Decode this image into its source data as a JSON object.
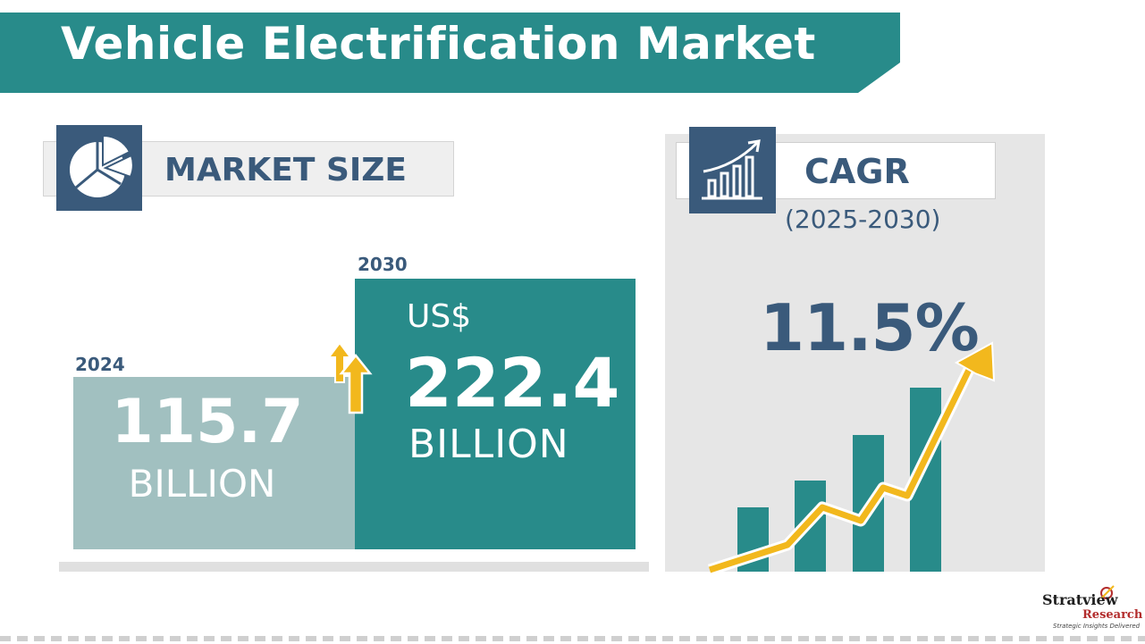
{
  "title": "Vehicle Electrification Market",
  "market_size": {
    "label": "MARKET SIZE",
    "icon": "pie-chart-icon",
    "y2024": {
      "year": "2024",
      "value": "115.7",
      "unit": "BILLION"
    },
    "y2030": {
      "year": "2030",
      "currency": "US$",
      "value": "222.4",
      "unit": "BILLION"
    }
  },
  "cagr": {
    "label": "CAGR",
    "icon": "growth-chart-icon",
    "period": "(2025-2030)",
    "value": "11.5%"
  },
  "logo": {
    "name": "Stratview",
    "sub": "Research",
    "tagline": "Strategic Insights Delivered"
  },
  "colors": {
    "teal": "#288b8a",
    "light_teal": "#a1c0c0",
    "navy": "#3a5a7b",
    "yellow": "#f2b81d",
    "panel_gray": "#e6e6e6"
  }
}
